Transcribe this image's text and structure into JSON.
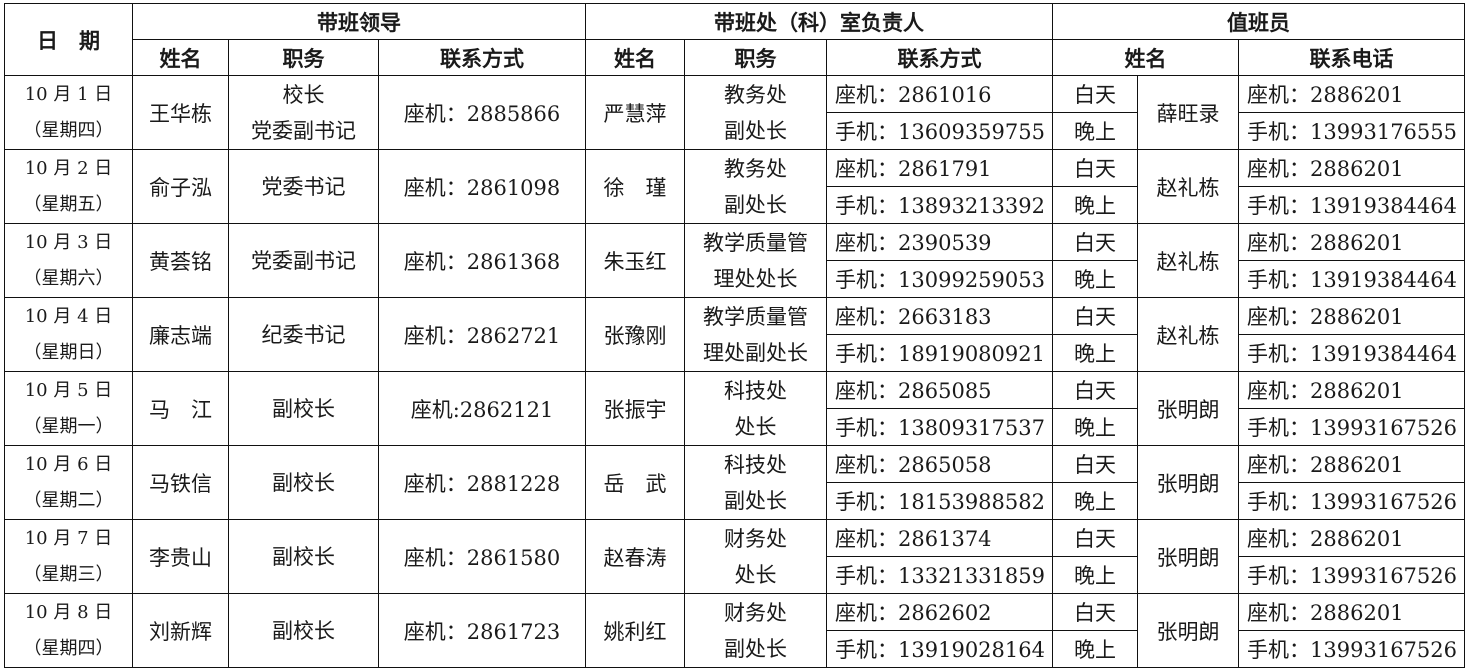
{
  "header": {
    "date": "日　期",
    "leader_group": "带班领导",
    "dept_group": "带班处（科）室负责人",
    "duty_group": "值班员",
    "name": "姓名",
    "position": "职务",
    "contact": "联系方式",
    "phone": "联系电话"
  },
  "rows": [
    {
      "date": "10 月 1 日",
      "weekday": "（星期四）",
      "leader": "王华栋",
      "leader_pos": [
        "校长",
        "党委副书记"
      ],
      "leader_tel": "座机：2885866",
      "dept_name": "严慧萍",
      "dept_pos": [
        "教务处",
        "副处长"
      ],
      "dept_land": "座机：2861016",
      "dept_mobile": "手机：13609359755",
      "day": "白天",
      "night": "晚上",
      "duty": "薛旺录",
      "duty_land": "座机：2886201",
      "duty_mobile": "手机：13993176555"
    },
    {
      "date": "10 月 2 日",
      "weekday": "（星期五）",
      "leader": "俞子泓",
      "leader_pos": [
        "党委书记"
      ],
      "leader_tel": "座机：2861098",
      "dept_name": "徐　瑾",
      "dept_pos": [
        "教务处",
        "副处长"
      ],
      "dept_land": "座机：2861791",
      "dept_mobile": "手机：13893213392",
      "day": "白天",
      "night": "晚上",
      "duty": "赵礼栋",
      "duty_land": "座机：2886201",
      "duty_mobile": "手机：13919384464"
    },
    {
      "date": "10 月 3 日",
      "weekday": "（星期六）",
      "leader": "黄荟铭",
      "leader_pos": [
        "党委副书记"
      ],
      "leader_tel": "座机：2861368",
      "dept_name": "朱玉红",
      "dept_pos": [
        "教学质量管",
        "理处处长"
      ],
      "dept_land": "座机：2390539",
      "dept_mobile": "手机：13099259053",
      "day": "白天",
      "night": "晚上",
      "duty": "赵礼栋",
      "duty_land": "座机：2886201",
      "duty_mobile": "手机：13919384464"
    },
    {
      "date": "10 月 4 日",
      "weekday": "（星期日）",
      "leader": "廉志端",
      "leader_pos": [
        "纪委书记"
      ],
      "leader_tel": "座机：2862721",
      "dept_name": "张豫刚",
      "dept_pos": [
        "教学质量管",
        "理处副处长"
      ],
      "dept_land": "座机：2663183",
      "dept_mobile": "手机：18919080921",
      "day": "白天",
      "night": "晚上",
      "duty": "赵礼栋",
      "duty_land": "座机：2886201",
      "duty_mobile": "手机：13919384464"
    },
    {
      "date": "10 月 5 日",
      "weekday": "（星期一）",
      "leader": "马　江",
      "leader_pos": [
        "副校长"
      ],
      "leader_tel": "座机:2862121",
      "dept_name": "张振宇",
      "dept_pos": [
        "科技处",
        "处长"
      ],
      "dept_land": "座机：2865085",
      "dept_mobile": "手机：13809317537",
      "day": "白天",
      "night": "晚上",
      "duty": "张明朗",
      "duty_land": "座机：2886201",
      "duty_mobile": "手机：13993167526"
    },
    {
      "date": "10 月 6 日",
      "weekday": "（星期二）",
      "leader": "马铁信",
      "leader_pos": [
        "副校长"
      ],
      "leader_tel": "座机：2881228",
      "dept_name": "岳　武",
      "dept_pos": [
        "科技处",
        "副处长"
      ],
      "dept_land": "座机：2865058",
      "dept_mobile": "手机：18153988582",
      "day": "白天",
      "night": "晚上",
      "duty": "张明朗",
      "duty_land": "座机：2886201",
      "duty_mobile": "手机：13993167526"
    },
    {
      "date": "10 月 7 日",
      "weekday": "（星期三）",
      "leader": "李贵山",
      "leader_pos": [
        "副校长"
      ],
      "leader_tel": "座机：2861580",
      "dept_name": "赵春涛",
      "dept_pos": [
        "财务处",
        "处长"
      ],
      "dept_land": "座机：2861374",
      "dept_mobile": "手机：13321331859",
      "day": "白天",
      "night": "晚上",
      "duty": "张明朗",
      "duty_land": "座机：2886201",
      "duty_mobile": "手机：13993167526"
    },
    {
      "date": "10 月 8 日",
      "weekday": "（星期四）",
      "leader": "刘新辉",
      "leader_pos": [
        "副校长"
      ],
      "leader_tel": "座机：2861723",
      "dept_name": "姚利红",
      "dept_pos": [
        "财务处",
        "副处长"
      ],
      "dept_land": "座机：2862602",
      "dept_mobile": "手机：13919028164",
      "day": "白天",
      "night": "晚上",
      "duty": "张明朗",
      "duty_land": "座机：2886201",
      "duty_mobile": "手机：13993167526"
    }
  ]
}
